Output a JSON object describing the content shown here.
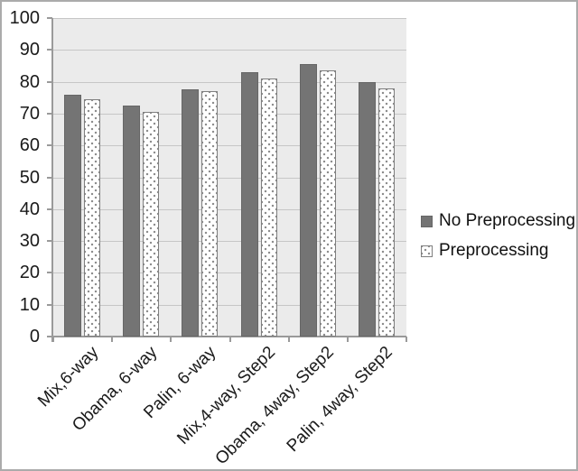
{
  "chart_data": {
    "type": "bar",
    "title": "",
    "xlabel": "",
    "ylabel": "",
    "categories": [
      "Mix,6-way",
      "Obama, 6-way",
      "Palin, 6-way",
      "Mix,4-way, Step2",
      "Obama, 4way, Step2",
      "Palin, 4way, Step2"
    ],
    "series": [
      {
        "name": "No Preprocessing",
        "style": "solid",
        "values": [
          76,
          72.5,
          77.5,
          83,
          85.5,
          80
        ]
      },
      {
        "name": "Preprocessing",
        "style": "dotted",
        "values": [
          74.5,
          70.5,
          77,
          81,
          83.5,
          78
        ]
      }
    ],
    "ylim": [
      0,
      100
    ],
    "yticks": [
      0,
      10,
      20,
      30,
      40,
      50,
      60,
      70,
      80,
      90,
      100
    ],
    "grid": true,
    "legend_position": "right",
    "colors": {
      "no_preprocessing_fill": "#747474",
      "preprocessing_fill": "#ffffff",
      "preprocessing_dot": "#8a8a8a",
      "plot_background": "#ebebeb",
      "gridline": "#c6c6c6",
      "axis": "#9a9a9a",
      "text": "#1a1a1a"
    }
  },
  "legend": {
    "items": [
      {
        "label": "No Preprocessing",
        "swatch": "solid-gray-square"
      },
      {
        "label": "Preprocessing",
        "swatch": "dotted-white-square"
      }
    ]
  }
}
